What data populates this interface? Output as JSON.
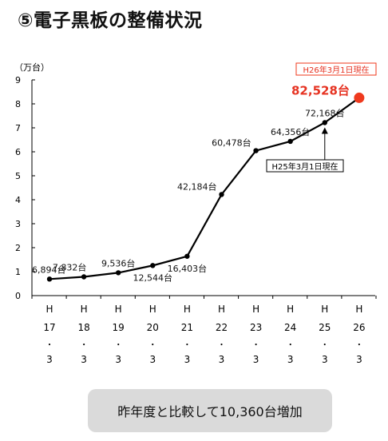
{
  "title": "⑤電子黒板の整備状況",
  "summary": "昨年度と比較して10,360台増加",
  "chart_data": {
    "type": "line",
    "unit_label": "（万台）",
    "ylim": [
      0,
      9
    ],
    "yticks": [
      0,
      1,
      2,
      3,
      4,
      5,
      6,
      7,
      8,
      9
    ],
    "x_labels": [
      [
        "H",
        "17",
        "・",
        "3"
      ],
      [
        "H",
        "18",
        "・",
        "3"
      ],
      [
        "H",
        "19",
        "・",
        "3"
      ],
      [
        "H",
        "20",
        "・",
        "3"
      ],
      [
        "H",
        "21",
        "・",
        "3"
      ],
      [
        "H",
        "22",
        "・",
        "3"
      ],
      [
        "H",
        "23",
        "・",
        "3"
      ],
      [
        "H",
        "24",
        "・",
        "3"
      ],
      [
        "H",
        "25",
        "・",
        "3"
      ],
      [
        "H",
        "26",
        "・",
        "3"
      ]
    ],
    "values": [
      0.6894,
      0.7832,
      0.9536,
      1.2544,
      1.6403,
      4.2184,
      6.0478,
      6.4356,
      7.2168,
      8.2528
    ],
    "data_labels": [
      "6,894台",
      "7,832台",
      "9,536台",
      "12,544台",
      "16,403台",
      "42,184台",
      "60,478台",
      "64,356台",
      "72,168台",
      "82,528台"
    ],
    "label_positions": [
      "above",
      "above",
      "above",
      "below",
      "below",
      "left",
      "left",
      "above",
      "above",
      "above"
    ],
    "highlight_index": 9,
    "colors": {
      "line": "#000000",
      "highlight": "#ef3a1e",
      "highlight_text": "#e63322"
    },
    "annotations": {
      "latest": "H26年3月1日現在",
      "previous": "H25年3月1日現在"
    },
    "grid": false
  }
}
